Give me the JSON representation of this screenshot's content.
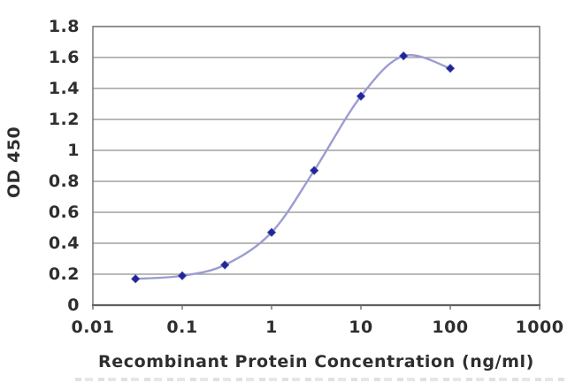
{
  "chart_data": {
    "type": "line",
    "title": "",
    "xlabel": "Recombinant Protein Concentration (ng/ml)",
    "ylabel": "OD 450",
    "x_scale": "log",
    "xlim": [
      0.01,
      1000
    ],
    "ylim": [
      0,
      1.8
    ],
    "x": [
      0.03,
      0.1,
      0.3,
      1,
      3,
      10,
      30,
      100
    ],
    "series": [
      {
        "name": "OD 450",
        "values": [
          0.17,
          0.19,
          0.26,
          0.47,
          0.87,
          1.35,
          1.61,
          1.53
        ]
      }
    ],
    "x_ticks": [
      0.01,
      0.1,
      1,
      10,
      100,
      1000
    ],
    "x_tick_labels": [
      "0.01",
      "0.1",
      "1",
      "10",
      "100",
      "1000"
    ],
    "y_ticks": [
      0,
      0.2,
      0.4,
      0.6,
      0.8,
      1,
      1.2,
      1.4,
      1.6,
      1.8
    ],
    "y_tick_labels": [
      "0",
      "0.2",
      "0.4",
      "0.6",
      "0.8",
      "1",
      "1.2",
      "1.4",
      "1.6",
      "1.8"
    ],
    "grid": "horizontal",
    "legend": "none",
    "marker": "diamond",
    "line_style": "smooth",
    "colors": {
      "line": "#9b9dd1",
      "marker": "#20259a",
      "grid": "#8f8f8f",
      "axis": "#6e6e6e",
      "baseline": "#5f5f5f",
      "text": "#2e2e2e"
    }
  }
}
